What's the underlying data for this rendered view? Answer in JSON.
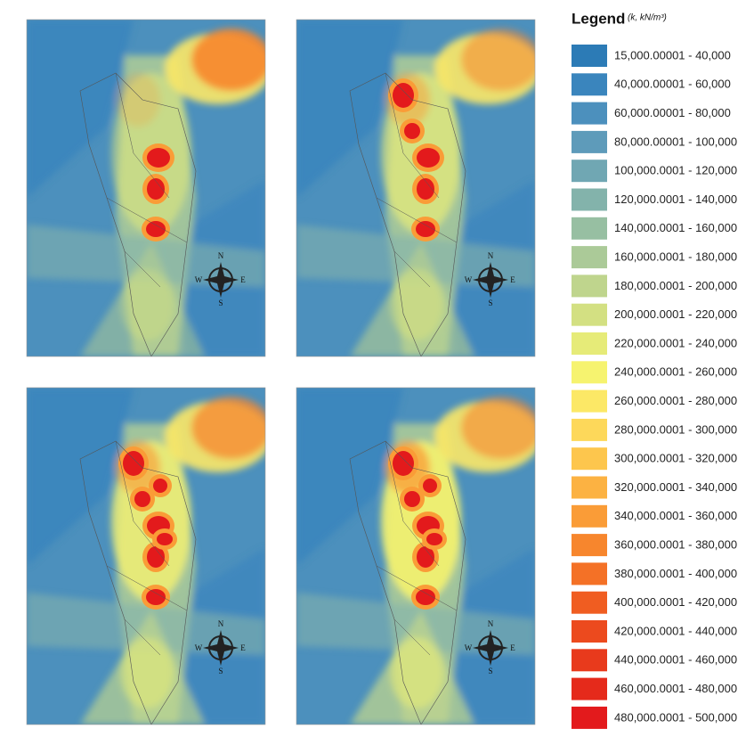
{
  "legend": {
    "title": "Legend",
    "unit": "(k, kN/m³)",
    "items": [
      {
        "label": "15,000.00001 - 40,000",
        "color": "#2c7bb6"
      },
      {
        "label": "40,000.00001 - 60,000",
        "color": "#3a85bd"
      },
      {
        "label": "60,000.00001 - 80,000",
        "color": "#4c90bd"
      },
      {
        "label": "80,000.00001 - 100,000",
        "color": "#5e9bba"
      },
      {
        "label": "100,000.0001 - 120,000",
        "color": "#70a7b3"
      },
      {
        "label": "120,000.0001 - 140,000",
        "color": "#83b3ab"
      },
      {
        "label": "140,000.0001 - 160,000",
        "color": "#97bfa2"
      },
      {
        "label": "160,000.0001 - 180,000",
        "color": "#abca98"
      },
      {
        "label": "180,000.0001 - 200,000",
        "color": "#bfd58d"
      },
      {
        "label": "200,000.0001 - 220,000",
        "color": "#d3e082"
      },
      {
        "label": "220,000.0001 - 240,000",
        "color": "#e6eb78"
      },
      {
        "label": "240,000.0001 - 260,000",
        "color": "#f6f36f"
      },
      {
        "label": "260,000.0001 - 280,000",
        "color": "#fce866"
      },
      {
        "label": "280,000.0001 - 300,000",
        "color": "#fdd85a"
      },
      {
        "label": "300,000.0001 - 320,000",
        "color": "#fdc64d"
      },
      {
        "label": "320,000.0001 - 340,000",
        "color": "#fcb242"
      },
      {
        "label": "340,000.0001 - 360,000",
        "color": "#fa9c37"
      },
      {
        "label": "360,000.0001 - 380,000",
        "color": "#f7862d"
      },
      {
        "label": "380,000.0001 - 400,000",
        "color": "#f47126"
      },
      {
        "label": "400,000.0001 - 420,000",
        "color": "#f05d21"
      },
      {
        "label": "420,000.0001 - 440,000",
        "color": "#ec4a1e"
      },
      {
        "label": "440,000.0001 - 460,000",
        "color": "#e83a1c"
      },
      {
        "label": "460,000.0001 - 480,000",
        "color": "#e52a1b"
      },
      {
        "label": "480,000.0001 - 500,000",
        "color": "#e31a1c"
      }
    ]
  },
  "compass": {
    "north": "N",
    "south": "S",
    "east": "E",
    "west": "W"
  }
}
